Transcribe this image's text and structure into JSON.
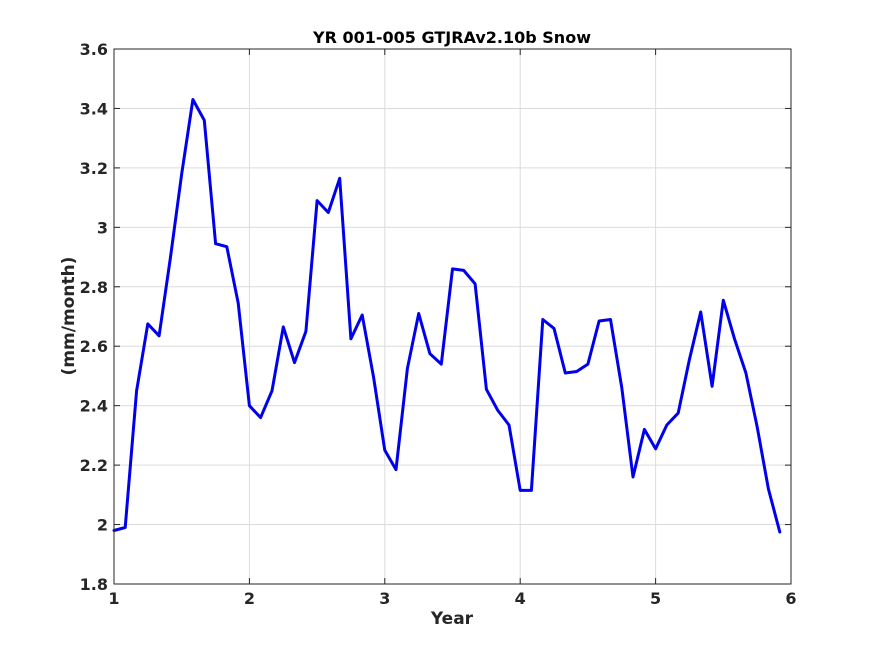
{
  "chart_data": {
    "type": "line",
    "title": "YR 001-005 GTJRAv2.10b Snow",
    "xlabel": "Year",
    "ylabel": "(mm/month)",
    "xlim": [
      1,
      6
    ],
    "ylim": [
      1.8,
      3.6
    ],
    "xticks": [
      1,
      2,
      3,
      4,
      5,
      6
    ],
    "xtick_labels": [
      "1",
      "2",
      "3",
      "4",
      "5",
      "6"
    ],
    "yticks": [
      1.8,
      2.0,
      2.2,
      2.4,
      2.6,
      2.8,
      3.0,
      3.2,
      3.4,
      3.6
    ],
    "ytick_labels": [
      "1.8",
      "2",
      "2.2",
      "2.4",
      "2.6",
      "2.8",
      "3",
      "3.2",
      "3.4",
      "3.6"
    ],
    "grid": true,
    "series_color": "#0000ee",
    "series": [
      {
        "x": [
          1.0,
          1.083,
          1.167,
          1.25,
          1.333,
          1.417,
          1.5,
          1.583,
          1.667,
          1.75,
          1.833,
          1.917,
          2.0,
          2.083,
          2.167,
          2.25,
          2.333,
          2.417,
          2.5,
          2.583,
          2.667,
          2.75,
          2.833,
          2.917,
          3.0,
          3.083,
          3.167,
          3.25,
          3.333,
          3.417,
          3.5,
          3.583,
          3.667,
          3.75,
          3.833,
          3.917,
          4.0,
          4.083,
          4.167,
          4.25,
          4.333,
          4.417,
          4.5,
          4.583,
          4.667,
          4.75,
          4.833,
          4.917,
          5.0,
          5.083,
          5.167,
          5.25,
          5.333,
          5.417,
          5.5,
          5.583,
          5.667,
          5.75,
          5.833,
          5.917
        ],
        "values": [
          1.98,
          1.99,
          2.45,
          2.675,
          2.635,
          2.9,
          3.18,
          3.43,
          3.36,
          2.945,
          2.935,
          2.745,
          2.4,
          2.36,
          2.45,
          2.665,
          2.545,
          2.65,
          3.09,
          3.05,
          3.165,
          2.625,
          2.705,
          2.495,
          2.25,
          2.185,
          2.525,
          2.71,
          2.575,
          2.54,
          2.86,
          2.855,
          2.81,
          2.455,
          2.385,
          2.335,
          2.115,
          2.115,
          2.69,
          2.66,
          2.51,
          2.515,
          2.54,
          2.685,
          2.69,
          2.46,
          2.16,
          2.32,
          2.255,
          2.335,
          2.375,
          2.555,
          2.715,
          2.465,
          2.755,
          2.625,
          2.51,
          2.33,
          2.12,
          1.975
        ]
      }
    ]
  }
}
